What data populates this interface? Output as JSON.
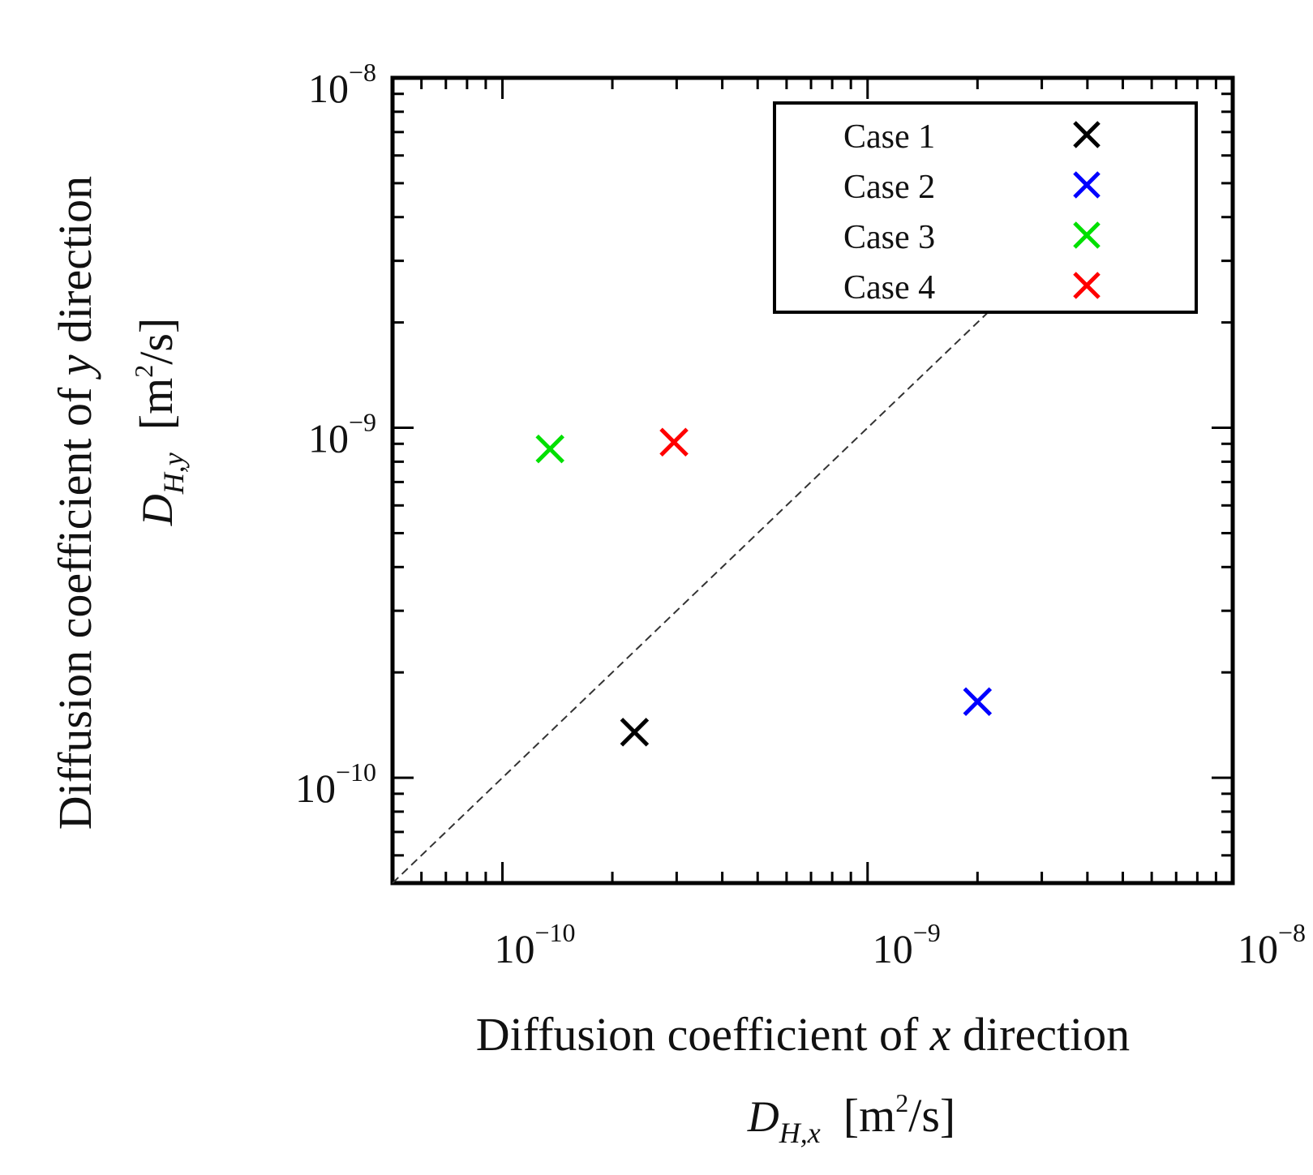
{
  "chart_data": {
    "type": "scatter",
    "title": "",
    "x_scale": "log",
    "y_scale": "log",
    "xlim": [
      5e-11,
      1e-08
    ],
    "ylim": [
      5e-11,
      1e-08
    ],
    "x_ticks": [
      {
        "value": 1e-10,
        "base": "10",
        "exp": "−10"
      },
      {
        "value": 1e-09,
        "base": "10",
        "exp": "−9"
      },
      {
        "value": 1e-08,
        "base": "10",
        "exp": "−8"
      }
    ],
    "y_ticks": [
      {
        "value": 1e-10,
        "base": "10",
        "exp": "−10"
      },
      {
        "value": 1e-09,
        "base": "10",
        "exp": "−9"
      },
      {
        "value": 1e-08,
        "base": "10",
        "exp": "−8"
      }
    ],
    "xlabel": {
      "line1_prefix": "Diffusion coefficient of ",
      "line1_var": "x",
      "line1_suffix": " direction",
      "symbol": "D",
      "subscript": "H,x",
      "unit_open": "[m",
      "unit_sup": "2",
      "unit_close": "/s]"
    },
    "ylabel": {
      "line1_prefix": "Diffusion coefficient of ",
      "line1_var": "y",
      "line1_suffix": " direction",
      "symbol": "D",
      "subscript": "H,y",
      "unit_open": "[m",
      "unit_sup": "2",
      "unit_close": "/s]"
    },
    "reference_line": {
      "style": "dashed",
      "color": "#333333",
      "x": [
        5e-11,
        5e-09
      ],
      "y": [
        5e-11,
        5e-09
      ]
    },
    "legend_position": "top-right",
    "series": [
      {
        "name": "Case 1",
        "color": "#000000",
        "marker": "x",
        "x": 2.3e-10,
        "y": 1.35e-10
      },
      {
        "name": "Case 2",
        "color": "#0000ff",
        "marker": "x",
        "x": 2e-09,
        "y": 1.65e-10
      },
      {
        "name": "Case 3",
        "color": "#00e000",
        "marker": "x",
        "x": 1.35e-10,
        "y": 8.7e-10
      },
      {
        "name": "Case 4",
        "color": "#ff0000",
        "marker": "x",
        "x": 2.95e-10,
        "y": 9.1e-10
      }
    ]
  }
}
